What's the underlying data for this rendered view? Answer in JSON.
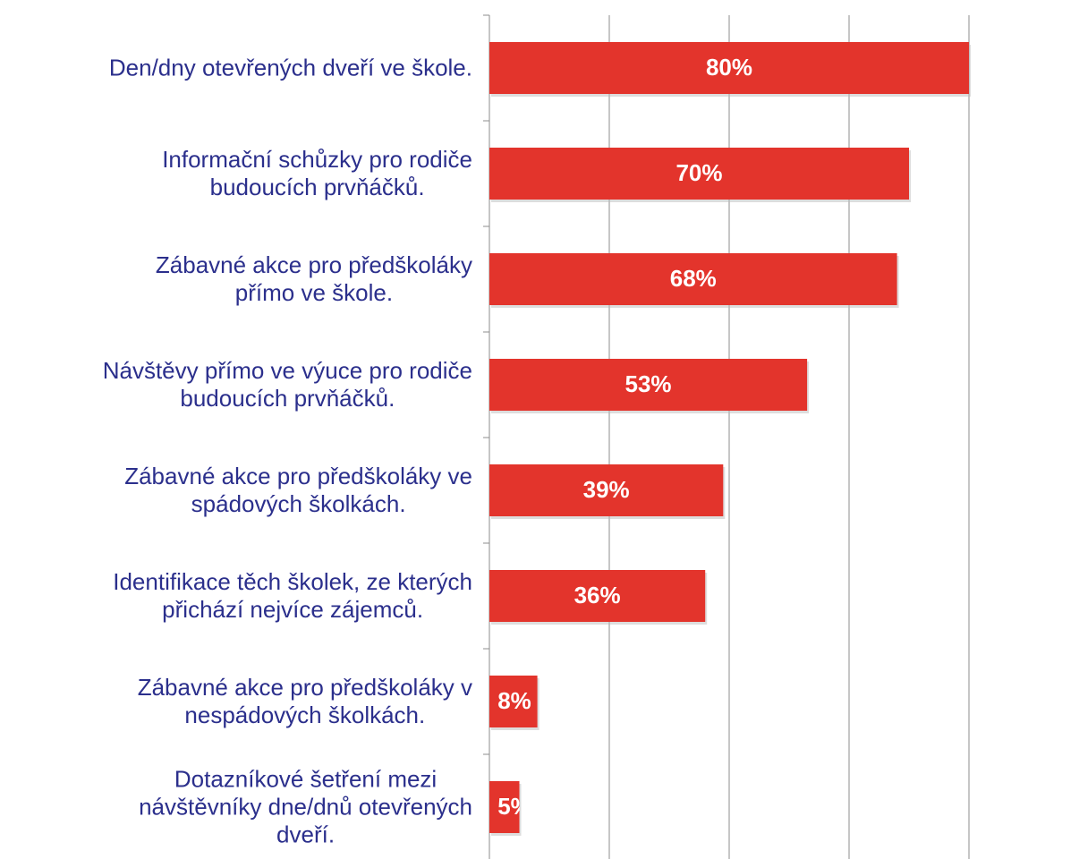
{
  "chart_data": {
    "type": "bar",
    "orientation": "horizontal",
    "categories": [
      "Den/dny otevřených dveří ve škole.",
      "Informační schůzky pro rodiče\nbudoucích prvňáčků.",
      "Zábavné akce pro předškoláky\npřímo ve škole.",
      "Návštěvy přímo ve výuce pro rodiče\nbudoucích prvňáčků.",
      "Zábavné akce pro předškoláky ve\nspádových školkách.",
      "Identifikace těch školek, ze kterých\npřichází nejvíce zájemců.",
      "Zábavné akce pro předškoláky v\nnespádových školkách.",
      "Dotazníkové šetření mezi\nnávštěvníky dne/dnů otevřených\ndveří."
    ],
    "values": [
      80,
      70,
      68,
      53,
      39,
      36,
      8,
      5
    ],
    "value_labels": [
      "80%",
      "70%",
      "68%",
      "53%",
      "39%",
      "36%",
      "8%",
      "5%"
    ],
    "color": "#e3342c",
    "xlim": [
      0,
      80
    ],
    "xticks": [
      0,
      20,
      40,
      60,
      80
    ],
    "grid": true
  }
}
